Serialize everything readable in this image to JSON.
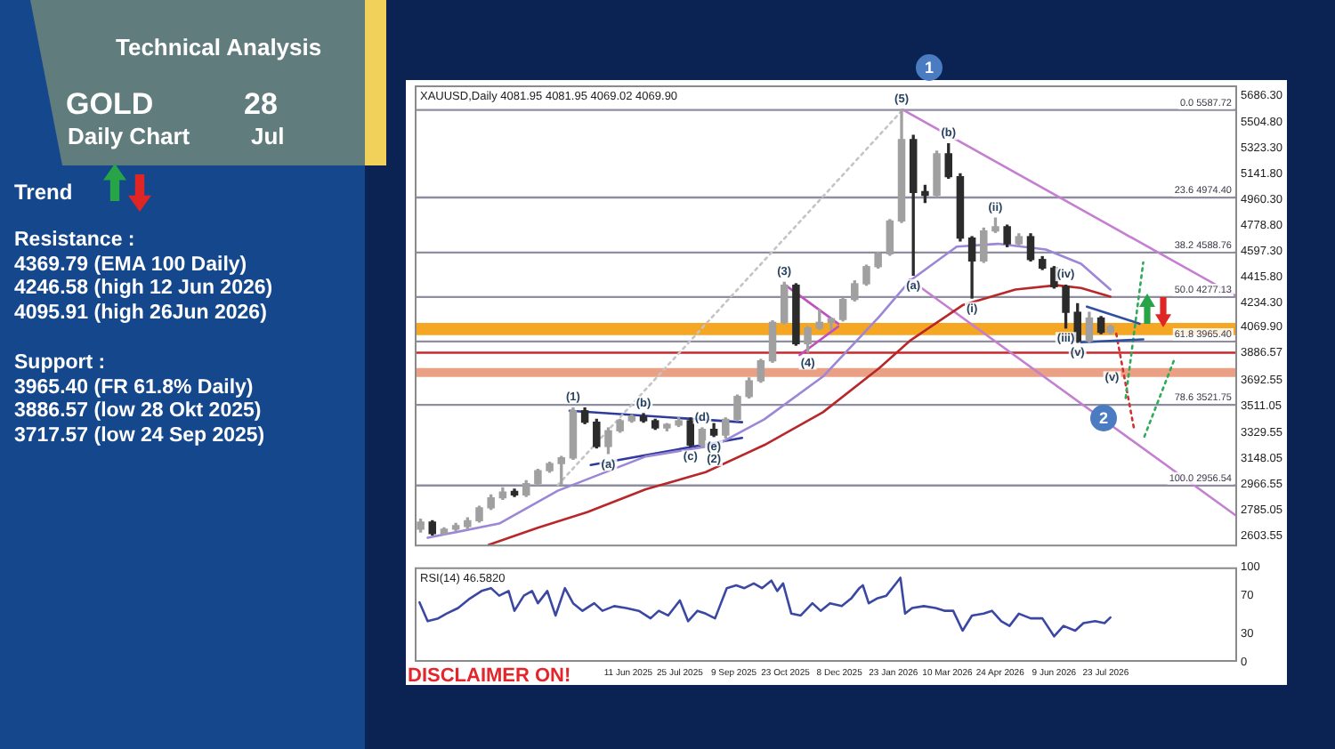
{
  "chart_data": [
    {
      "type": "other",
      "title": "Technical Analysis",
      "annotations": [
        "GOLD",
        "28",
        "Daily Chart",
        "Jul",
        "Trend",
        "Resistance :",
        "4369.79 (EMA 100 Daily)",
        "4246.58 (high 12 Jun 2026)",
        "4095.91 (high 26Jun 2026)",
        "Support :",
        "3965.40 (FR 61.8% Daily)",
        "3886.57 (low 28 Okt 2025)",
        "3717.57 (low 24 Sep 2025)"
      ]
    },
    {
      "type": "candlestick",
      "title": "XAUUSD,Daily 4081.95 4081.95 4069.02 4069.90",
      "colors": [
        "#a0a0a0",
        "#2b2b2b",
        "#a0a0a0",
        "#a0a0a0",
        "#a0a0a0",
        "#a0a0a0",
        "#a0a0a0",
        "#a0a0a0",
        "#2b2b2b",
        "#a0a0a0",
        "#a0a0a0",
        "#a0a0a0",
        "#a0a0a0",
        "#a0a0a0",
        "#2b2b2b",
        "#2b2b2b",
        "#a0a0a0",
        "#a0a0a0",
        "#a0a0a0",
        "#2b2b2b",
        "#2b2b2b",
        "#a0a0a0",
        "#a0a0a0",
        "#2b2b2b",
        "#a0a0a0",
        "#2b2b2b",
        "#a0a0a0",
        "#a0a0a0",
        "#a0a0a0",
        "#a0a0a0",
        "#a0a0a0",
        "#a0a0a0",
        "#2b2b2b",
        "#a0a0a0",
        "#a0a0a0",
        "#a0a0a0",
        "#a0a0a0",
        "#a0a0a0",
        "#a0a0a0",
        "#a0a0a0",
        "#a0a0a0",
        "#a0a0a0",
        "#2b2b2b",
        "#2b2b2b",
        "#a0a0a0",
        "#2b2b2b",
        "#2b2b2b",
        "#2b2b2b",
        "#a0a0a0",
        "#a0a0a0",
        "#2b2b2b",
        "#a0a0a0",
        "#2b2b2b",
        "#2b2b2b",
        "#2b2b2b",
        "#2b2b2b",
        "#2b2b2b",
        "#a0a0a0",
        "#2b2b2b",
        "#a0a0a0"
      ],
      "x": [
        "2024-12-16",
        "2024-12-26",
        "2025-01-05",
        "2025-01-15",
        "2025-01-25",
        "2025-02-04",
        "2025-02-14",
        "2025-02-24",
        "2025-03-06",
        "2025-03-16",
        "2025-03-26",
        "2025-04-05",
        "2025-04-15",
        "2025-04-25",
        "2025-05-05",
        "2025-05-15",
        "2025-05-25",
        "2025-06-04",
        "2025-06-14",
        "2025-06-24",
        "2025-07-04",
        "2025-07-14",
        "2025-07-24",
        "2025-08-03",
        "2025-08-13",
        "2025-08-23",
        "2025-09-02",
        "2025-09-12",
        "2025-09-22",
        "2025-10-02",
        "2025-10-12",
        "2025-10-22",
        "2025-11-01",
        "2025-11-11",
        "2025-11-21",
        "2025-12-01",
        "2025-12-11",
        "2025-12-21",
        "2025-12-31",
        "2026-01-10",
        "2026-01-20",
        "2026-01-30",
        "2026-02-09",
        "2026-02-19",
        "2026-03-01",
        "2026-03-11",
        "2026-03-21",
        "2026-03-31",
        "2026-04-10",
        "2026-04-20",
        "2026-04-30",
        "2026-05-10",
        "2026-05-20",
        "2026-05-30",
        "2026-06-09",
        "2026-06-19",
        "2026-06-29",
        "2026-07-09",
        "2026-07-19",
        "2026-07-27"
      ],
      "ohlc": [
        [
          2650,
          2720,
          2630,
          2700
        ],
        [
          2700,
          2710,
          2610,
          2620
        ],
        [
          2620,
          2660,
          2610,
          2650
        ],
        [
          2650,
          2690,
          2640,
          2670
        ],
        [
          2670,
          2730,
          2650,
          2710
        ],
        [
          2710,
          2810,
          2700,
          2800
        ],
        [
          2800,
          2890,
          2790,
          2870
        ],
        [
          2870,
          2940,
          2860,
          2910
        ],
        [
          2910,
          2930,
          2880,
          2890
        ],
        [
          2890,
          2990,
          2880,
          2970
        ],
        [
          2970,
          3070,
          2960,
          3060
        ],
        [
          3060,
          3120,
          3050,
          3110
        ],
        [
          3110,
          3160,
          2960,
          3150
        ],
        [
          3150,
          3500,
          3140,
          3480
        ],
        [
          3480,
          3500,
          3390,
          3400
        ],
        [
          3400,
          3420,
          3220,
          3230
        ],
        [
          3230,
          3360,
          3180,
          3340
        ],
        [
          3340,
          3420,
          3330,
          3410
        ],
        [
          3410,
          3450,
          3400,
          3440
        ],
        [
          3440,
          3460,
          3400,
          3410
        ],
        [
          3410,
          3420,
          3350,
          3360
        ],
        [
          3360,
          3390,
          3340,
          3380
        ],
        [
          3380,
          3430,
          3370,
          3410
        ],
        [
          3410,
          3430,
          3230,
          3240
        ],
        [
          3240,
          3360,
          3230,
          3350
        ],
        [
          3350,
          3390,
          3300,
          3310
        ],
        [
          3310,
          3430,
          3290,
          3420
        ],
        [
          3420,
          3590,
          3410,
          3580
        ],
        [
          3580,
          3710,
          3570,
          3690
        ],
        [
          3690,
          3840,
          3680,
          3830
        ],
        [
          3830,
          4110,
          3820,
          4100
        ],
        [
          4100,
          4380,
          4090,
          4360
        ],
        [
          4360,
          4370,
          3940,
          3950
        ],
        [
          3950,
          4070,
          3890,
          4060
        ],
        [
          4060,
          4190,
          4050,
          4100
        ],
        [
          4100,
          4130,
          4050,
          4120
        ],
        [
          4120,
          4270,
          4110,
          4260
        ],
        [
          4260,
          4390,
          4250,
          4370
        ],
        [
          4370,
          4500,
          4360,
          4490
        ],
        [
          4490,
          4590,
          4480,
          4580
        ],
        [
          4580,
          4820,
          4570,
          4810
        ],
        [
          4810,
          5590,
          4800,
          5380
        ],
        [
          5380,
          5410,
          4430,
          5010
        ],
        [
          5010,
          5060,
          4940,
          4990
        ],
        [
          4990,
          5300,
          4980,
          5280
        ],
        [
          5280,
          5350,
          5110,
          5120
        ],
        [
          5120,
          5140,
          4670,
          4690
        ],
        [
          4690,
          4700,
          4270,
          4530
        ],
        [
          4530,
          4760,
          4520,
          4740
        ],
        [
          4740,
          4830,
          4730,
          4770
        ],
        [
          4770,
          4780,
          4630,
          4650
        ],
        [
          4650,
          4720,
          4640,
          4700
        ],
        [
          4700,
          4720,
          4530,
          4540
        ],
        [
          4540,
          4560,
          4470,
          4480
        ],
        [
          4480,
          4490,
          4340,
          4350
        ],
        [
          4350,
          4360,
          4060,
          4170
        ],
        [
          4170,
          4230,
          3960,
          3970
        ],
        [
          3970,
          4170,
          3960,
          4130
        ],
        [
          4130,
          4140,
          4020,
          4030
        ],
        [
          4030,
          4080,
          4020,
          4069.9
        ]
      ],
      "series": [
        {
          "type": "line",
          "color": "#b8282a",
          "x": [
            "2025-02-12",
            "2025-03-26",
            "2025-05-07",
            "2025-06-26",
            "2025-08-16",
            "2025-10-05",
            "2025-11-24",
            "2026-01-11",
            "2026-02-06",
            "2026-03-23",
            "2026-05-07",
            "2026-06-11",
            "2026-07-02",
            "2026-07-27"
          ],
          "values": [
            2540,
            2660,
            2770,
            2930,
            3050,
            3240,
            3470,
            3780,
            3970,
            4220,
            4330,
            4360,
            4340,
            4280
          ]
        },
        {
          "type": "line",
          "color": "#9c86d6",
          "x": [
            "2024-12-22",
            "2025-02-21",
            "2025-04-12",
            "2025-06-26",
            "2025-08-25",
            "2025-10-05",
            "2025-11-24",
            "2026-01-11",
            "2026-02-06",
            "2026-03-18",
            "2026-04-22",
            "2026-06-02",
            "2026-07-02",
            "2026-07-27"
          ],
          "values": [
            2590,
            2690,
            2920,
            3160,
            3240,
            3420,
            3720,
            4140,
            4390,
            4630,
            4650,
            4610,
            4510,
            4330
          ]
        },
        {
          "type": "line",
          "color": "#c4c4c4",
          "line_style": "dotted",
          "x": [
            "2025-04-12",
            "2026-01-31"
          ],
          "values": [
            2960,
            5590
          ]
        },
        {
          "type": "line",
          "color": "#2e3a9e",
          "x": [
            "2025-04-22",
            "2025-09-16"
          ],
          "values": [
            3480,
            3400
          ]
        },
        {
          "type": "line",
          "color": "#2e3a9e",
          "x": [
            "2025-05-10",
            "2025-09-16"
          ],
          "values": [
            3100,
            3290
          ]
        },
        {
          "type": "line",
          "color": "#c050c0",
          "x": [
            "2025-10-23",
            "2025-12-07"
          ],
          "values": [
            4360,
            4090
          ]
        },
        {
          "type": "line",
          "color": "#c050c0",
          "x": [
            "2025-11-04",
            "2025-12-07"
          ],
          "values": [
            3870,
            4070
          ]
        },
        {
          "type": "line",
          "color": "#c57fd0",
          "x": [
            "2026-01-31",
            "2026-11-12"
          ],
          "values": [
            5590,
            4280
          ]
        },
        {
          "type": "line",
          "color": "#c57fd0",
          "x": [
            "2026-02-06",
            "2026-11-12"
          ],
          "values": [
            4400,
            2740
          ]
        },
        {
          "type": "line",
          "color": "#3050a0",
          "x": [
            "2026-07-07",
            "2026-08-21"
          ],
          "values": [
            4210,
            4090
          ]
        },
        {
          "type": "line",
          "color": "#3050a0",
          "x": [
            "2026-07-02",
            "2026-08-24"
          ],
          "values": [
            3960,
            3980
          ]
        },
        {
          "type": "line",
          "color": "#2eaa5a",
          "line_style": "dotted",
          "x": [
            "2026-08-09",
            "2026-08-24"
          ],
          "values": [
            3570,
            4520
          ]
        },
        {
          "type": "line",
          "color": "#d03030",
          "line_style": "dotted",
          "x": [
            "2026-08-01",
            "2026-08-08",
            "2026-08-16"
          ],
          "values": [
            4020,
            3710,
            3360
          ]
        },
        {
          "type": "line",
          "color": "#2eaa5a",
          "line_style": "dotted",
          "x": [
            "2026-08-25",
            "2026-09-20"
          ],
          "values": [
            3300,
            3850
          ]
        }
      ],
      "xlim": [
        "2024-12-11",
        "2026-11-12"
      ],
      "ylim": [
        2530,
        5760
      ],
      "yticks": [
        {
          "value": 5686.3,
          "label": "5686.30"
        },
        {
          "value": 5504.8,
          "label": "5504.80"
        },
        {
          "value": 5323.3,
          "label": "5323.30"
        },
        {
          "value": 5141.8,
          "label": "5141.80"
        },
        {
          "value": 4960.3,
          "label": "4960.30"
        },
        {
          "value": 4778.8,
          "label": "4778.80"
        },
        {
          "value": 4597.3,
          "label": "4597.30"
        },
        {
          "value": 4415.8,
          "label": "4415.80"
        },
        {
          "value": 4234.3,
          "label": "4234.30"
        },
        {
          "value": 4069.9,
          "label": "4069.90"
        },
        {
          "value": 3886.57,
          "label": "3886.57"
        },
        {
          "value": 3692.55,
          "label": "3692.55"
        },
        {
          "value": 3511.05,
          "label": "3511.05"
        },
        {
          "value": 3329.55,
          "label": "3329.55"
        },
        {
          "value": 3148.05,
          "label": "3148.05"
        },
        {
          "value": 2966.55,
          "label": "2966.55"
        },
        {
          "value": 2785.05,
          "label": "2785.05"
        },
        {
          "value": 2603.55,
          "label": "2603.55"
        }
      ],
      "tick_labels": "y",
      "ref_lines": [
        {
          "axis": "y",
          "value": 5587.72,
          "label": "0.0 5587.72",
          "color": "#8e8ea0"
        },
        {
          "axis": "y",
          "value": 4974.4,
          "label": "23.6 4974.40",
          "color": "#8e8ea0"
        },
        {
          "axis": "y",
          "value": 4588.76,
          "label": "38.2 4588.76",
          "color": "#8e8ea0"
        },
        {
          "axis": "y",
          "value": 4277.13,
          "label": "50.0 4277.13",
          "color": "#8e8ea0"
        },
        {
          "axis": "y",
          "value": 3965.4,
          "label": "61.8 3965.40",
          "color": "#8e8ea0"
        },
        {
          "axis": "y",
          "value": 3521.75,
          "label": "78.6 3521.75",
          "color": "#8e8ea0"
        },
        {
          "axis": "y",
          "value": 2956.54,
          "label": "100.0 2956.54",
          "color": "#8e8ea0"
        },
        {
          "axis": "y",
          "value": 3886.57,
          "color": "#c8282e"
        }
      ],
      "bands": [
        {
          "axis": "y",
          "from": 4010,
          "to": 4095.91,
          "color": "#f5a623"
        },
        {
          "axis": "y",
          "from": 3717.57,
          "to": 3780,
          "color": "#e9a084"
        }
      ],
      "annotations": [
        {
          "text": "(1)",
          "x": "2025-04-25",
          "y": 3500
        },
        {
          "text": "(a)",
          "x": "2025-05-25",
          "y": 3180
        },
        {
          "text": "(b)",
          "x": "2025-06-24",
          "y": 3460
        },
        {
          "text": "(c)",
          "x": "2025-08-03",
          "y": 3230
        },
        {
          "text": "(d)",
          "x": "2025-08-13",
          "y": 3360
        },
        {
          "text": "(e)",
          "x": "2025-08-23",
          "y": 3300
        },
        {
          "text": "(2)",
          "x": "2025-08-23",
          "y": 3300
        },
        {
          "text": "(3)",
          "x": "2025-10-22",
          "y": 4380
        },
        {
          "text": "(4)",
          "x": "2025-11-11",
          "y": 3890
        },
        {
          "text": "(5)",
          "x": "2026-01-30",
          "y": 5590
        },
        {
          "text": "(a)",
          "x": "2026-02-09",
          "y": 4430
        },
        {
          "text": "(b)",
          "x": "2026-03-11",
          "y": 5350
        },
        {
          "text": "(i)",
          "x": "2026-03-31",
          "y": 4270
        },
        {
          "text": "(ii)",
          "x": "2026-04-20",
          "y": 4830
        },
        {
          "text": "(iii)",
          "x": "2026-06-19",
          "y": 4060
        },
        {
          "text": "(iv)",
          "x": "2026-06-19",
          "y": 4360
        },
        {
          "text": "(v)",
          "x": "2026-06-29",
          "y": 3960
        },
        {
          "text": "(v)",
          "x": "2026-08-08",
          "y": 3710
        },
        "1",
        "2"
      ]
    },
    {
      "type": "line",
      "title": "RSI(14) 46.5820",
      "color": "#3b48a3",
      "x": [
        "2024-12-15",
        "2024-12-22",
        "2024-12-31",
        "2025-01-07",
        "2025-01-17",
        "2025-01-27",
        "2025-02-06",
        "2025-02-14",
        "2025-02-21",
        "2025-03-01",
        "2025-03-06",
        "2025-03-14",
        "2025-03-21",
        "2025-03-26",
        "2025-04-03",
        "2025-04-10",
        "2025-04-18",
        "2025-04-25",
        "2025-05-03",
        "2025-05-13",
        "2025-05-20",
        "2025-05-30",
        "2025-06-09",
        "2025-06-20",
        "2025-06-30",
        "2025-07-07",
        "2025-07-15",
        "2025-07-25",
        "2025-08-01",
        "2025-08-09",
        "2025-08-16",
        "2025-08-24",
        "2025-09-03",
        "2025-09-11",
        "2025-09-18",
        "2025-09-26",
        "2025-10-03",
        "2025-10-11",
        "2025-10-16",
        "2025-10-21",
        "2025-10-28",
        "2025-11-05",
        "2025-11-15",
        "2025-11-22",
        "2025-11-30",
        "2025-12-10",
        "2025-12-18",
        "2025-12-25",
        "2025-12-28",
        "2026-01-02",
        "2026-01-09",
        "2026-01-17",
        "2026-01-24",
        "2026-01-29",
        "2026-02-02",
        "2026-02-08",
        "2026-02-18",
        "2026-02-28",
        "2026-03-08",
        "2026-03-15",
        "2026-03-23",
        "2026-03-31",
        "2026-04-10",
        "2026-04-17",
        "2026-04-25",
        "2026-05-02",
        "2026-05-10",
        "2026-05-20",
        "2026-05-30",
        "2026-06-09",
        "2026-06-17",
        "2026-06-27",
        "2026-07-04",
        "2026-07-14",
        "2026-07-22",
        "2026-07-27"
      ],
      "values": [
        63,
        43,
        46,
        51,
        57,
        67,
        75,
        78,
        70,
        75,
        54,
        70,
        75,
        62,
        75,
        49,
        78,
        62,
        54,
        62,
        54,
        59,
        57,
        54,
        46,
        54,
        49,
        65,
        43,
        54,
        51,
        46,
        78,
        81,
        78,
        83,
        78,
        86,
        75,
        83,
        51,
        49,
        62,
        54,
        62,
        59,
        67,
        78,
        81,
        62,
        67,
        70,
        81,
        89,
        51,
        57,
        59,
        57,
        54,
        54,
        33,
        49,
        51,
        54,
        43,
        38,
        51,
        46,
        46,
        27,
        38,
        33,
        41,
        43,
        41,
        47
      ],
      "xlim": [
        "2024-12-11",
        "2026-11-12"
      ],
      "ylim": [
        0,
        100
      ],
      "yticks": [
        0,
        30,
        70,
        100
      ],
      "xticks": [
        {
          "value": "2025-06-11",
          "label": "11 Jun 2025"
        },
        {
          "value": "2025-07-25",
          "label": "25 Jul 2025"
        },
        {
          "value": "2025-09-09",
          "label": "9 Sep 2025"
        },
        {
          "value": "2025-10-23",
          "label": "23 Oct 2025"
        },
        {
          "value": "2025-12-08",
          "label": "8 Dec 2025"
        },
        {
          "value": "2026-01-23",
          "label": "23 Jan 2026"
        },
        {
          "value": "2026-03-10",
          "label": "10 Mar 2026"
        },
        {
          "value": "2026-04-24",
          "label": "24 Apr 2026"
        },
        {
          "value": "2026-06-09",
          "label": "9 Jun 2026"
        },
        {
          "value": "2026-07-23",
          "label": "23 Jul 2026"
        }
      ],
      "annotations": [
        "DISCLAIMER ON!"
      ]
    }
  ]
}
